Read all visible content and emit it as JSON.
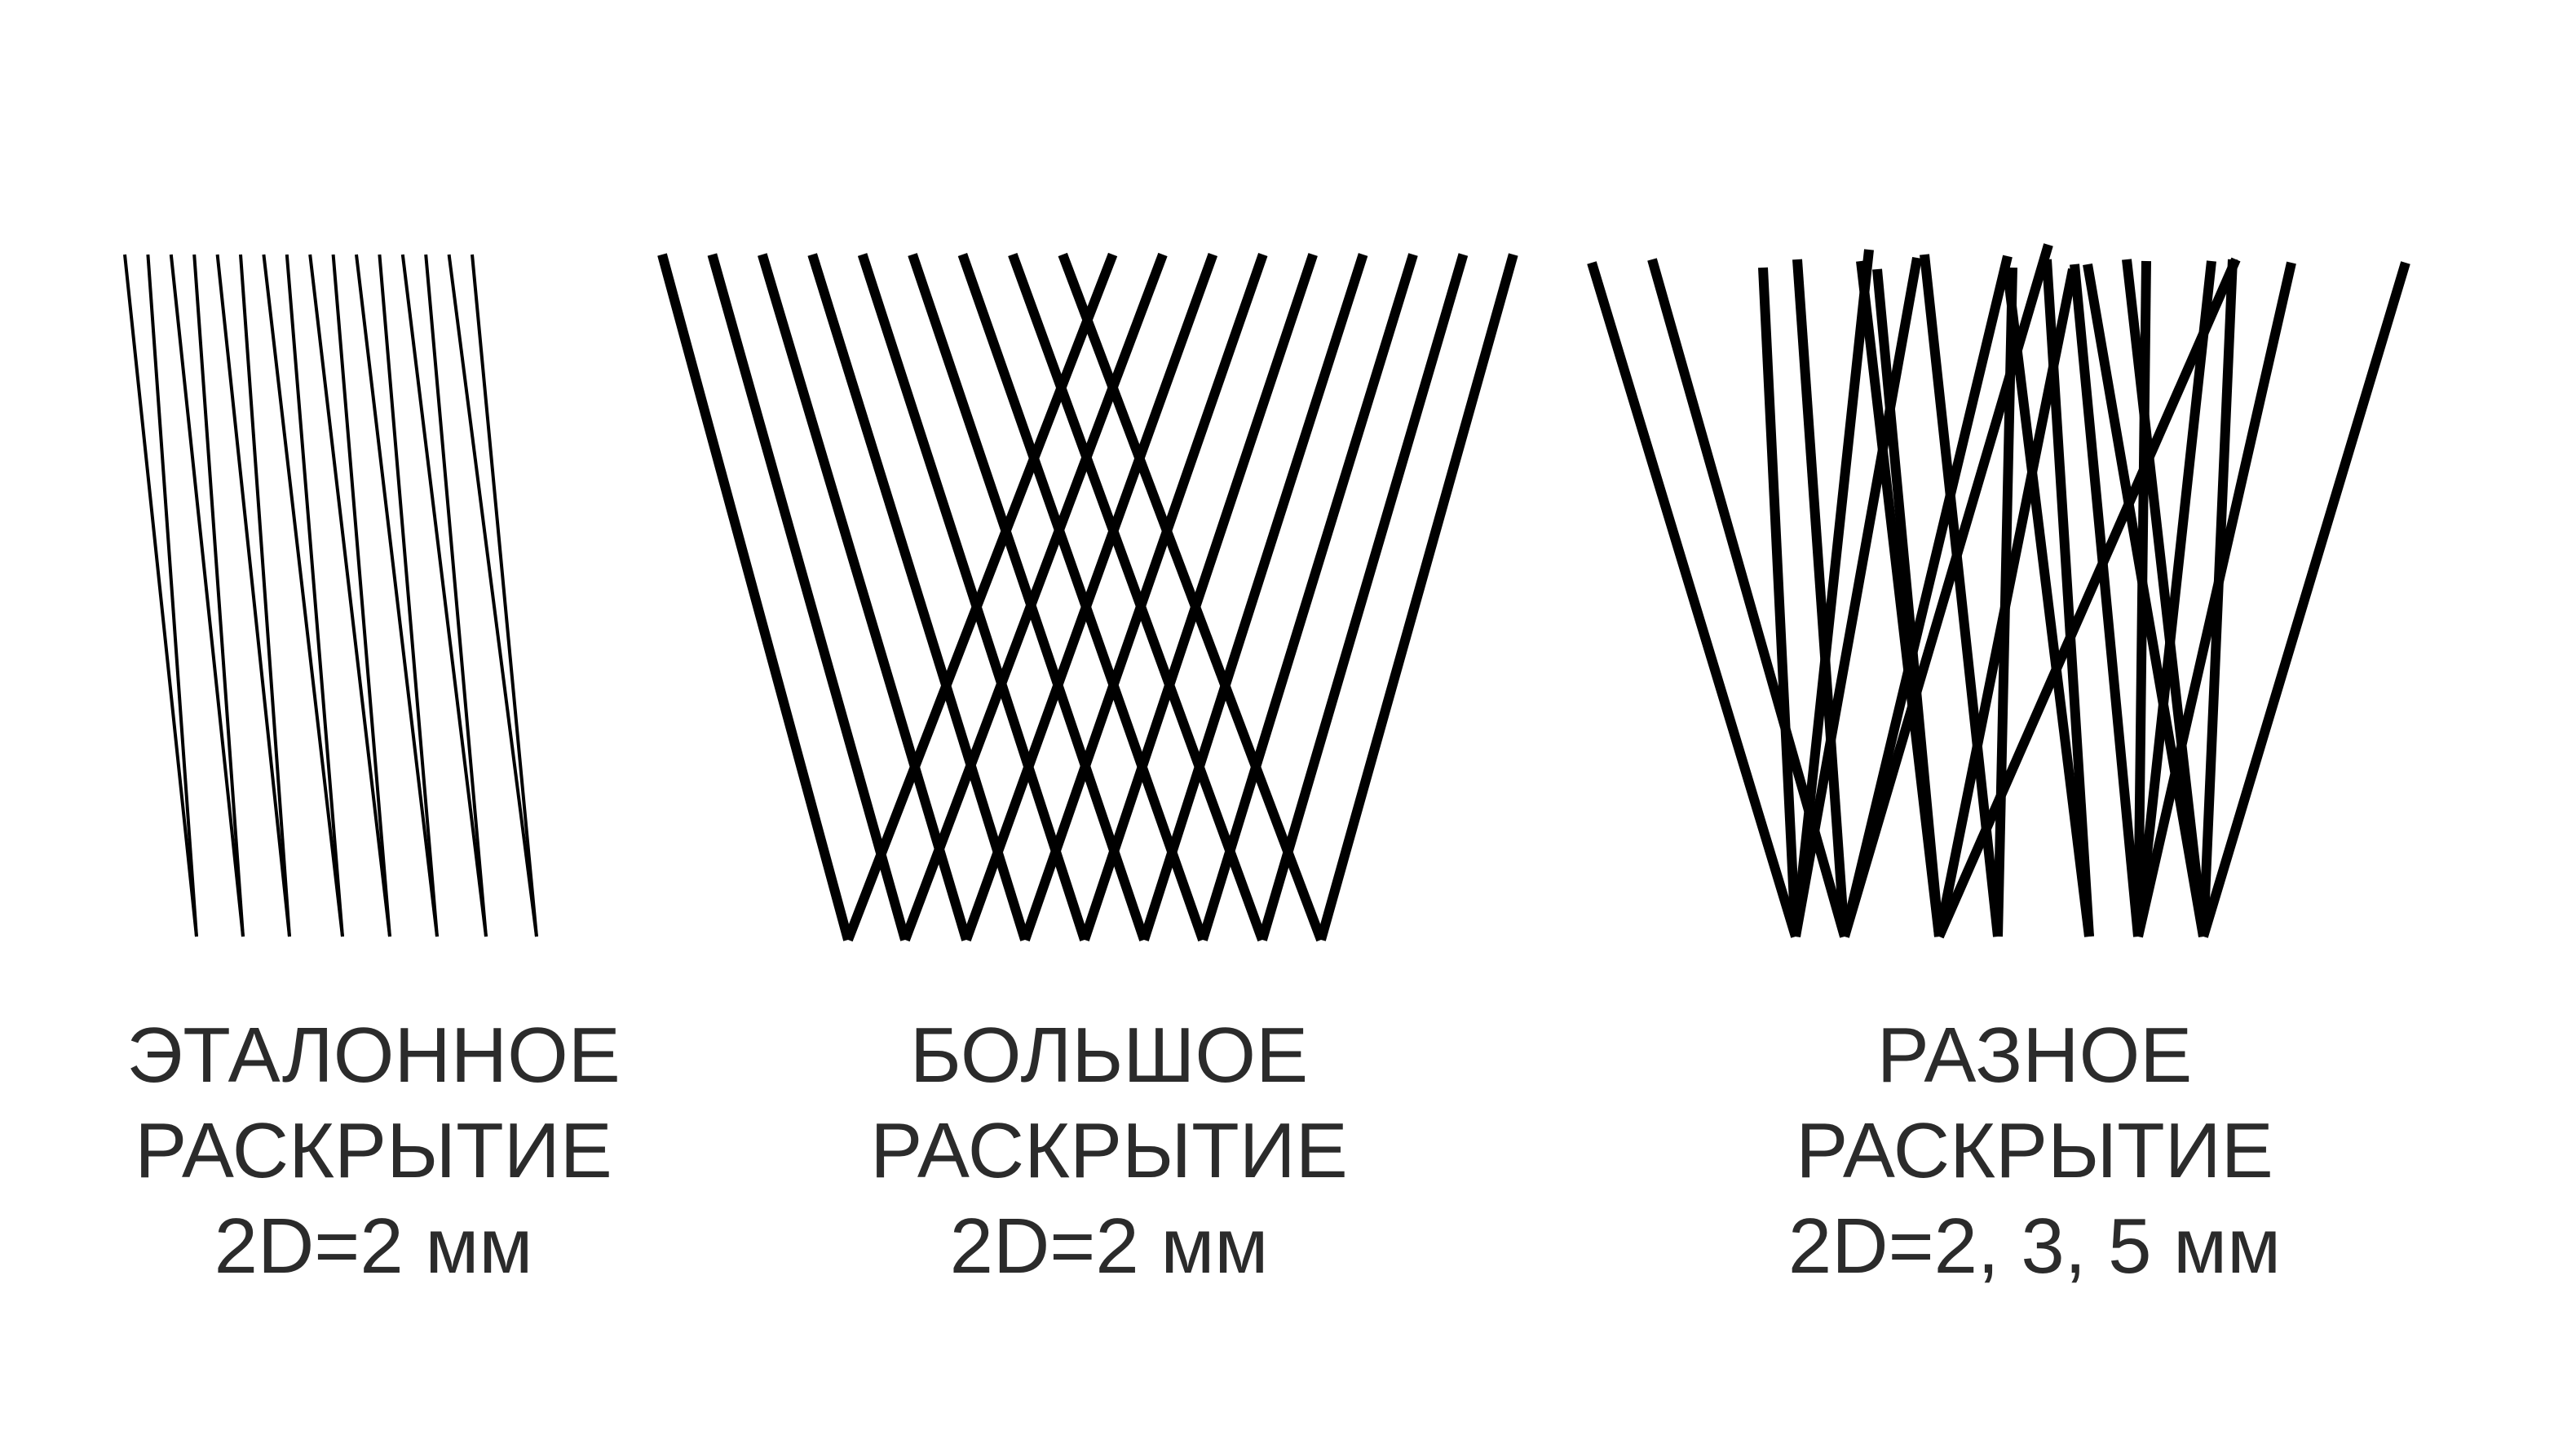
{
  "panels": [
    {
      "id": "standard",
      "caption": [
        "ЭТАЛОННОЕ",
        "РАСКРЫТИЕ",
        "2D=2 мм"
      ]
    },
    {
      "id": "large",
      "caption": [
        "БОЛЬШОЕ",
        "РАСКРЫТИЕ",
        "2D=2 мм"
      ]
    },
    {
      "id": "various",
      "caption": [
        "РАЗНОЕ",
        "РАСКРЫТИЕ",
        "2D=2, 3, 5 мм"
      ]
    }
  ],
  "colors": {
    "lines": "#000000",
    "text": "#2b2b2b",
    "background": "#ffffff"
  }
}
